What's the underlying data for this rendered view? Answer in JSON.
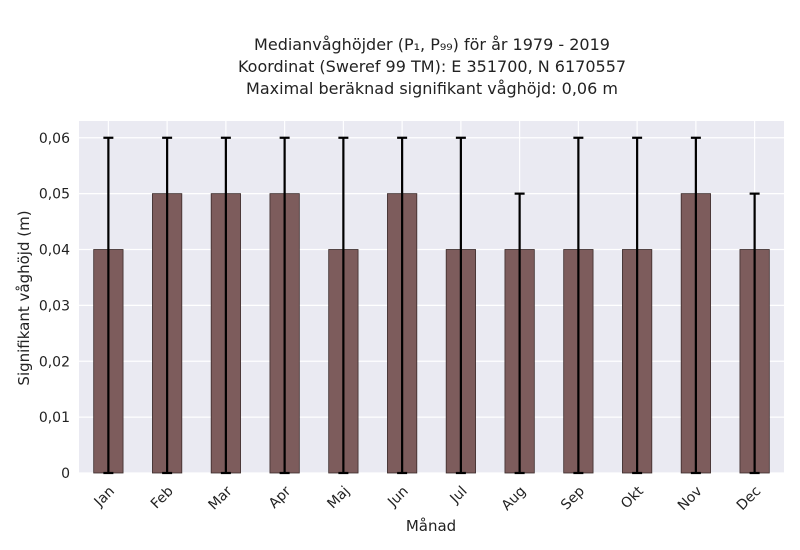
{
  "chart_data": {
    "type": "bar",
    "title_lines": [
      "Medianvåghöjder (P₁, P₉₉) för år 1979 - 2019",
      "Koordinat (Sweref 99 TM): E 351700, N 6170557",
      "Maximal beräknad signifikant våghöjd: 0,06 m"
    ],
    "xlabel": "Månad",
    "ylabel": "Signifikant våghöjd (m)",
    "categories": [
      "Jan",
      "Feb",
      "Mar",
      "Apr",
      "Maj",
      "Jun",
      "Jul",
      "Aug",
      "Sep",
      "Okt",
      "Nov",
      "Dec"
    ],
    "values": [
      0.04,
      0.05,
      0.05,
      0.05,
      0.04,
      0.05,
      0.04,
      0.04,
      0.04,
      0.04,
      0.05,
      0.04
    ],
    "error_low": [
      0,
      0,
      0,
      0,
      0,
      0,
      0,
      0,
      0,
      0,
      0,
      0
    ],
    "error_high": [
      0.06,
      0.06,
      0.06,
      0.06,
      0.06,
      0.06,
      0.06,
      0.05,
      0.06,
      0.06,
      0.06,
      0.05
    ],
    "ylim": [
      0,
      0.063
    ],
    "yticks": [
      0,
      0.01,
      0.02,
      0.03,
      0.04,
      0.05,
      0.06
    ],
    "ytick_labels": [
      "0",
      "0,01",
      "0,02",
      "0,03",
      "0,04",
      "0,05",
      "0,06"
    ],
    "grid": true,
    "colors": {
      "bar": "#7d5c5c",
      "bar_edge": "#3a2a2a",
      "error_bar": "#000000",
      "plot_background": "#eaeaf2",
      "grid": "#ffffff"
    }
  }
}
